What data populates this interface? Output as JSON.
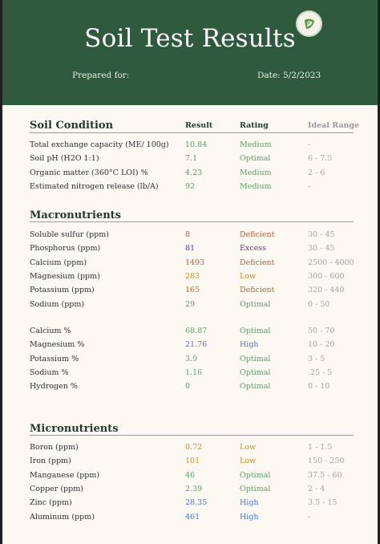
{
  "header": {
    "title": "Soil Test Results",
    "prepared_for_label": "Prepared for:",
    "date_label": "Date: 5/2/2023"
  },
  "columns": {
    "result": "Result",
    "rating": "Rating",
    "ideal": "Ideal Range"
  },
  "soil_condition": {
    "title": "Soil Condition",
    "rows": [
      {
        "label": "Total exchange capacity (ME/ 100g)",
        "result": "10.84",
        "rating": "Medium",
        "ideal": "-",
        "status": "good"
      },
      {
        "label": "Soil pH (H2O 1:1)",
        "result": "7.1",
        "rating": "Optimal",
        "ideal": "6 - 7.5",
        "status": "good"
      },
      {
        "label": "Organic matter (360°C LOI) %",
        "result": "4.23",
        "rating": "Medium",
        "ideal": "2 - 6",
        "status": "good"
      },
      {
        "label": "Estimated nitrogen release (lb/A)",
        "result": "92",
        "rating": "Medium",
        "ideal": "-",
        "status": "good"
      }
    ]
  },
  "macronutrients": {
    "title": "Macronutrients",
    "rows": [
      {
        "label": "Soluble sulfur (ppm)",
        "result": "8",
        "rating": "Deficient",
        "ideal": "30 - 45",
        "status": "def"
      },
      {
        "label": "Phosphorus (ppm)",
        "result": "81",
        "rating": "Excess",
        "ideal": "30 - 45",
        "status": "exc"
      },
      {
        "label": "Calcium (ppm)",
        "result": "1493",
        "rating": "Deficient",
        "ideal": "2500 - 4000",
        "status": "def"
      },
      {
        "label": "Magnesium (ppm)",
        "result": "283",
        "rating": "Low",
        "ideal": "300 - 600",
        "status": "low"
      },
      {
        "label": "Potassium (ppm)",
        "result": "165",
        "rating": "Deficient",
        "ideal": "320 - 440",
        "status": "def"
      },
      {
        "label": "Sodium (ppm)",
        "result": "29",
        "rating": "Optimal",
        "ideal": "0 - 50",
        "status": "good"
      }
    ],
    "saturation_rows": [
      {
        "label": "Calcium %",
        "result": "68.87",
        "rating": "Optimal",
        "ideal": "50 - 70",
        "status": "good"
      },
      {
        "label": "Magnesium %",
        "result": "21.76",
        "rating": "High",
        "ideal": "10 - 20",
        "status": "high"
      },
      {
        "label": "Potassium %",
        "result": "3.9",
        "rating": "Optimal",
        "ideal": "3 - 5",
        "status": "good"
      },
      {
        "label": "Sodium %",
        "result": "1.16",
        "rating": "Optimal",
        "ideal": ".25 - 5",
        "status": "good"
      },
      {
        "label": "Hydrogen %",
        "result": "0",
        "rating": "Optimal",
        "ideal": "0 - 10",
        "status": "good"
      }
    ]
  },
  "micronutrients": {
    "title": "Micronutrients",
    "rows": [
      {
        "label": "Boron (ppm)",
        "result": "0.72",
        "rating": "Low",
        "ideal": "1 - 1.5",
        "status": "low"
      },
      {
        "label": "Iron (ppm)",
        "result": "101",
        "rating": "Low",
        "ideal": "150 - 250",
        "status": "low"
      },
      {
        "label": "Manganese (ppm)",
        "result": "46",
        "rating": "Optimal",
        "ideal": "37.5 - 60",
        "status": "good"
      },
      {
        "label": "Copper (ppm)",
        "result": "2.39",
        "rating": "Optimal",
        "ideal": "2 - 4",
        "status": "good"
      },
      {
        "label": "Zinc (ppm)",
        "result": "28.35",
        "rating": "High",
        "ideal": "3.5 - 15",
        "status": "high"
      },
      {
        "label": "Aluminum (ppm)",
        "result": "461",
        "rating": "High",
        "ideal": "-",
        "status": "high"
      }
    ]
  },
  "icons": {
    "logo": "leaf-seal-icon"
  },
  "colors": {
    "header_bg": "#2f5a3d",
    "good": "#5e9a6a",
    "deficient": "#c05a3a",
    "excess": "#7a2e91",
    "low": "#cc8a2c",
    "high": "#4e73c9"
  }
}
